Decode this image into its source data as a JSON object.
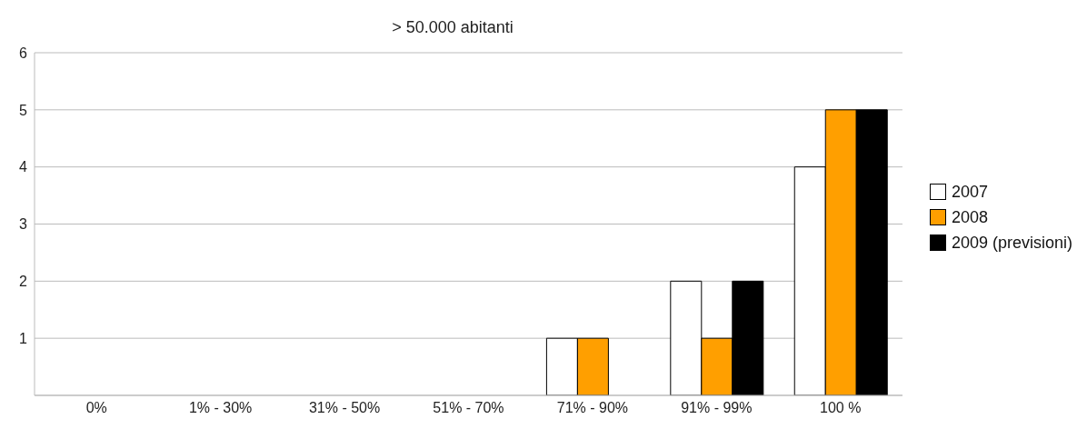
{
  "chart_data": {
    "type": "bar",
    "title": "> 50.000 abitanti",
    "categories": [
      "0%",
      "1% - 30%",
      "31% - 50%",
      "51% - 70%",
      "71% - 90%",
      "91% - 99%",
      "100 %"
    ],
    "series": [
      {
        "name": "2007",
        "color": "#ffffff",
        "values": [
          0,
          0,
          0,
          0,
          1,
          2,
          4
        ]
      },
      {
        "name": "2008",
        "color": "#ff9f00",
        "values": [
          0,
          0,
          0,
          0,
          1,
          1,
          5
        ]
      },
      {
        "name": "2009 (previsioni)",
        "color": "#000000",
        "values": [
          0,
          0,
          0,
          0,
          0,
          2,
          5
        ]
      }
    ],
    "ylim": [
      0,
      6
    ],
    "yticks": [
      {
        "value": 0,
        "label": null
      },
      1,
      2,
      3,
      4,
      5,
      6
    ],
    "grid": "y",
    "legend": "right"
  }
}
